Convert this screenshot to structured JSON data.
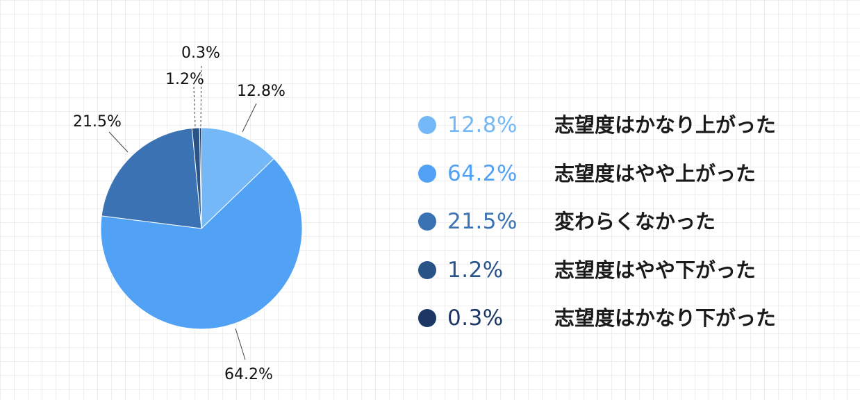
{
  "chart_data": {
    "type": "pie",
    "title": "",
    "slices": [
      {
        "label": "志望度はかなり上がった",
        "value": 12.8,
        "display": "12.8%",
        "color": "#74b8f7"
      },
      {
        "label": "志望度はやや上がった",
        "value": 64.2,
        "display": "64.2%",
        "color": "#51a1f4"
      },
      {
        "label": "変わらくなかった",
        "value": 21.5,
        "display": "21.5%",
        "color": "#3a72b4"
      },
      {
        "label": "志望度はやや下がった",
        "value": 1.2,
        "display": "1.2%",
        "color": "#2a5388"
      },
      {
        "label": "志望度はかなり下がった",
        "value": 0.3,
        "display": "0.3%",
        "color": "#1c3764"
      }
    ],
    "start": "12 o'clock",
    "direction": "clockwise",
    "legend_position": "right"
  }
}
